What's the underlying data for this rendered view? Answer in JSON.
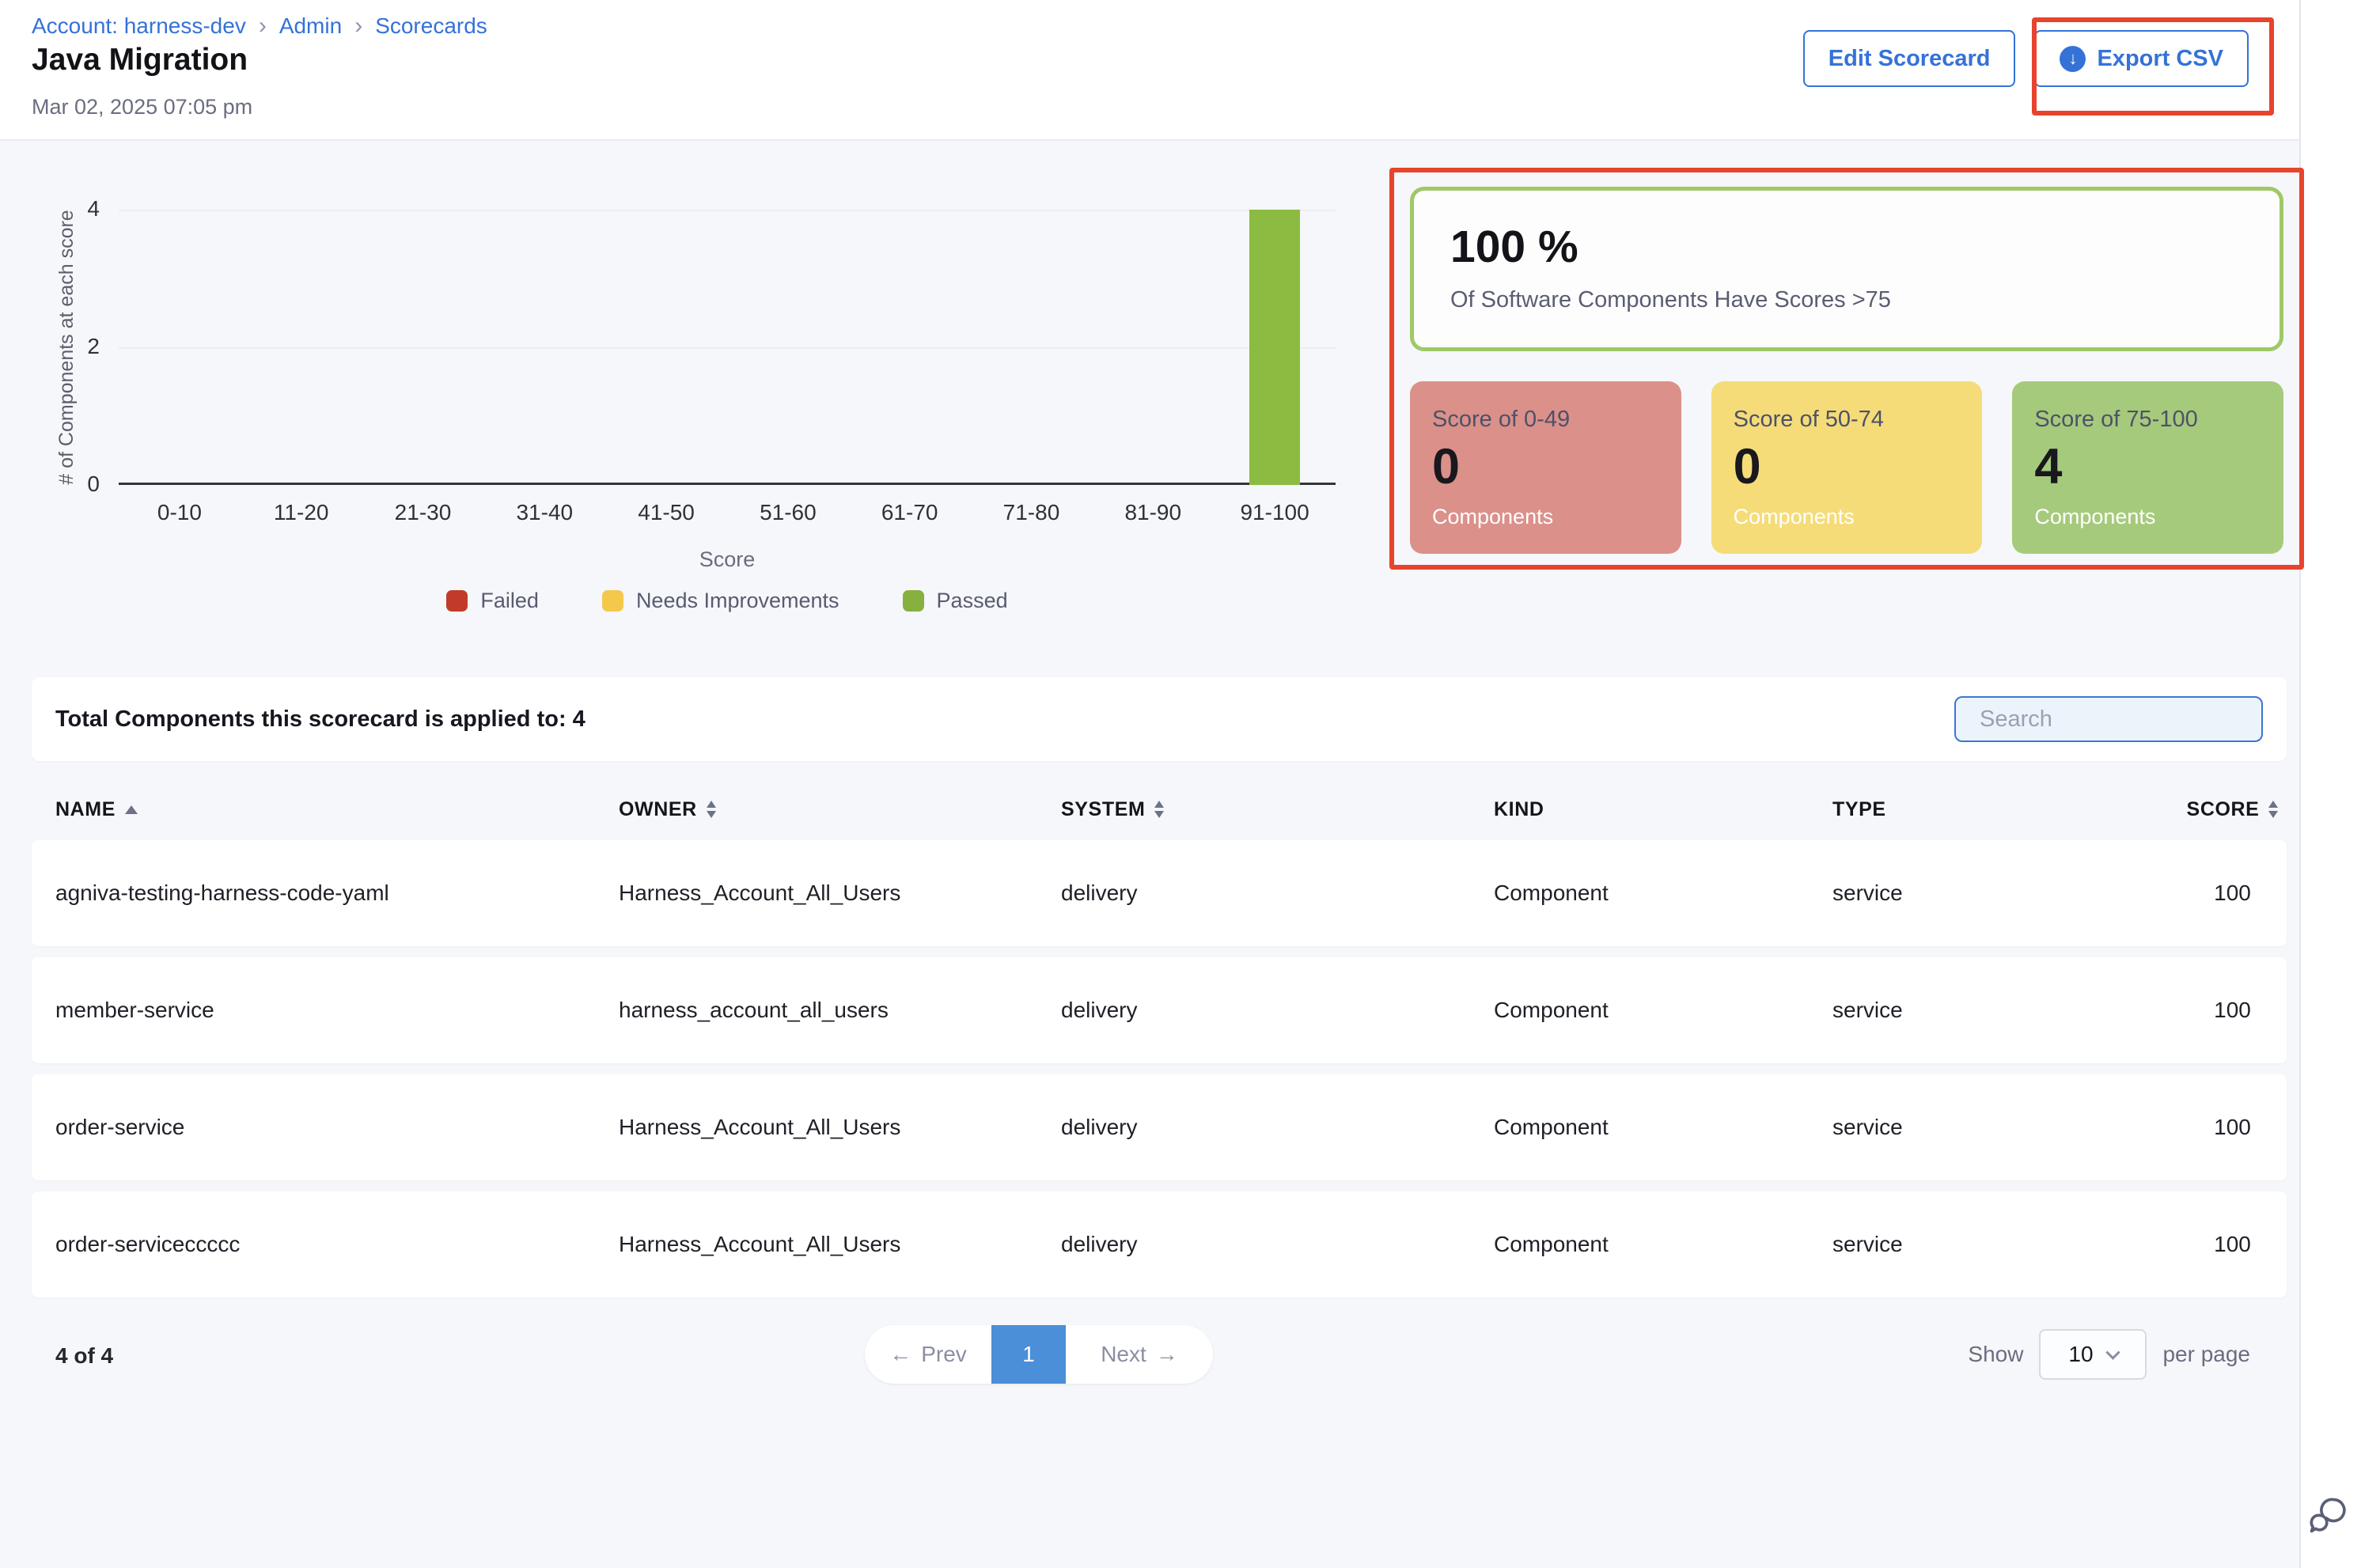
{
  "breadcrumb": {
    "items": [
      {
        "label": "Account: harness-dev"
      },
      {
        "label": "Admin"
      },
      {
        "label": "Scorecards"
      }
    ],
    "separator": "›"
  },
  "header": {
    "title": "Java Migration",
    "timestamp": "Mar 02, 2025 07:05 pm",
    "edit_button": "Edit Scorecard",
    "export_button": "Export CSV"
  },
  "chart_data": {
    "type": "bar",
    "title": "",
    "ylabel": "# of Components at each score",
    "xlabel": "Score",
    "ylim": [
      0,
      4
    ],
    "yticks": [
      4,
      2,
      0
    ],
    "grid": "horizontal",
    "legend_position": "bottom",
    "categories": [
      "0-10",
      "11-20",
      "21-30",
      "31-40",
      "41-50",
      "51-60",
      "61-70",
      "71-80",
      "81-90",
      "91-100"
    ],
    "series": [
      {
        "name": "Failed",
        "color": "#c23b28",
        "values": [
          0,
          0,
          0,
          0,
          0,
          0,
          0,
          0,
          0,
          0
        ]
      },
      {
        "name": "Needs Improvements",
        "color": "#f4c94b",
        "values": [
          0,
          0,
          0,
          0,
          0,
          0,
          0,
          0,
          0,
          0
        ]
      },
      {
        "name": "Passed",
        "color": "#8cbb41",
        "values": [
          0,
          0,
          0,
          0,
          0,
          0,
          0,
          0,
          0,
          4
        ]
      }
    ]
  },
  "summary": {
    "percent": "100 %",
    "caption": "Of Software Components Have Scores >75",
    "border_color": "#a0c868",
    "annotation_color": "#e8432c",
    "cards": [
      {
        "label": "Score of 0-49",
        "value": "0",
        "caption": "Components",
        "bg": "#db908a"
      },
      {
        "label": "Score of 50-74",
        "value": "0",
        "caption": "Components",
        "bg": "#f5dc79"
      },
      {
        "label": "Score of 75-100",
        "value": "4",
        "caption": "Components",
        "bg": "#a6ca7c"
      }
    ]
  },
  "table": {
    "total_label": "Total Components this scorecard is applied to: 4",
    "search_placeholder": "Search",
    "columns": [
      {
        "label": "NAME",
        "sort": "asc"
      },
      {
        "label": "OWNER",
        "sort": "both"
      },
      {
        "label": "SYSTEM",
        "sort": "both"
      },
      {
        "label": "KIND",
        "sort": "none"
      },
      {
        "label": "TYPE",
        "sort": "none"
      },
      {
        "label": "SCORE",
        "sort": "both"
      }
    ],
    "rows": [
      {
        "cells": [
          "agniva-testing-harness-code-yaml",
          "Harness_Account_All_Users",
          "delivery",
          "Component",
          "service",
          "100"
        ]
      },
      {
        "cells": [
          "member-service",
          "harness_account_all_users",
          "delivery",
          "Component",
          "service",
          "100"
        ]
      },
      {
        "cells": [
          "order-service",
          "Harness_Account_All_Users",
          "delivery",
          "Component",
          "service",
          "100"
        ]
      },
      {
        "cells": [
          "order-serviceccccc",
          "Harness_Account_All_Users",
          "delivery",
          "Component",
          "service",
          "100"
        ]
      }
    ]
  },
  "pagination": {
    "count": "4 of 4",
    "prev_arrow": "←",
    "prev": "Prev",
    "page": "1",
    "next": "Next",
    "next_arrow": "→",
    "show": "Show",
    "page_size": "10",
    "per_page": "per page"
  }
}
